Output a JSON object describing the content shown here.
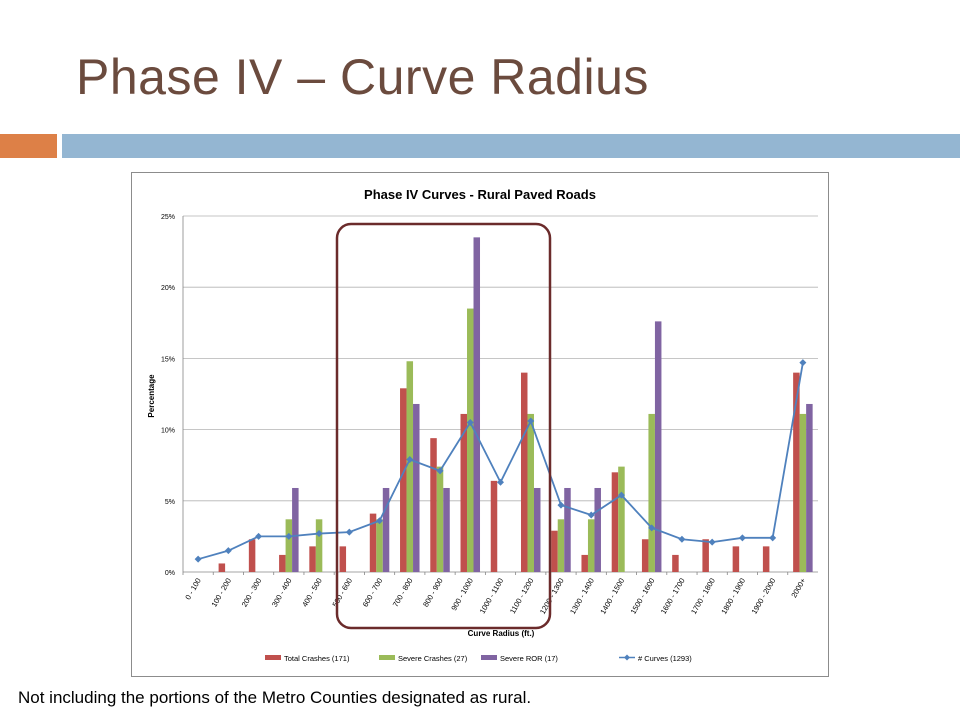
{
  "slide": {
    "title": "Phase IV – Curve Radius",
    "caption": "Not including the portions of the Metro Counties designated as rural."
  },
  "colors": {
    "title": "#6b4b3e",
    "accent_orange": "#dd8047",
    "accent_blue": "#94b6d2",
    "total_crashes": "#c0504d",
    "severe_crashes": "#9bbb59",
    "severe_ror": "#8064a2",
    "curves": "#4f81bd",
    "highlight_box": "#6b2b2b"
  },
  "chart_data": {
    "type": "bar",
    "title": "Phase IV Curves - Rural Paved Roads",
    "xlabel": "Curve Radius (ft.)",
    "ylabel": "Percentage",
    "ylim": [
      0,
      25
    ],
    "yticks": [
      "0%",
      "5%",
      "10%",
      "15%",
      "20%",
      "25%"
    ],
    "grid": true,
    "legend": "bottom",
    "categories": [
      "0 - 100",
      "100 - 200",
      "200 - 300",
      "300 - 400",
      "400 - 500",
      "500 - 600",
      "600 - 700",
      "700 - 800",
      "800 - 900",
      "900 - 1000",
      "1000 - 1100",
      "1100 - 1200",
      "1200 - 1300",
      "1300 - 1400",
      "1400 - 1500",
      "1500 - 1600",
      "1600 - 1700",
      "1700 - 1800",
      "1800 - 1900",
      "1900 - 2000",
      "2000+"
    ],
    "series": [
      {
        "name": "Total Crashes (171)",
        "type": "bar",
        "color": "#c0504d",
        "values": [
          0,
          0.6,
          2.3,
          1.2,
          1.8,
          1.8,
          4.1,
          12.9,
          9.4,
          11.1,
          6.4,
          14.0,
          2.9,
          1.2,
          7.0,
          2.3,
          1.2,
          2.3,
          1.8,
          1.8,
          14.0
        ]
      },
      {
        "name": "Severe Crashes (27)",
        "type": "bar",
        "color": "#9bbb59",
        "values": [
          0,
          0,
          0,
          3.7,
          3.7,
          0,
          3.7,
          14.8,
          7.4,
          18.5,
          0,
          11.1,
          3.7,
          3.7,
          7.4,
          11.1,
          0,
          0,
          0,
          0,
          11.1
        ]
      },
      {
        "name": "Severe ROR (17)",
        "type": "bar",
        "color": "#8064a2",
        "values": [
          0,
          0,
          0,
          5.9,
          0,
          0,
          5.9,
          11.8,
          5.9,
          23.5,
          0,
          5.9,
          5.9,
          5.9,
          0,
          17.6,
          0,
          0,
          0,
          0,
          11.8
        ]
      },
      {
        "name": "# Curves (1293)",
        "type": "line",
        "color": "#4f81bd",
        "values": [
          0.9,
          1.5,
          2.5,
          2.5,
          2.7,
          2.8,
          3.6,
          7.9,
          7.1,
          10.5,
          6.3,
          10.6,
          4.7,
          4.0,
          5.4,
          3.1,
          2.3,
          2.1,
          2.4,
          2.4,
          14.7
        ]
      }
    ],
    "highlight": "box around 600 - 700 through 1100 - 1200"
  }
}
